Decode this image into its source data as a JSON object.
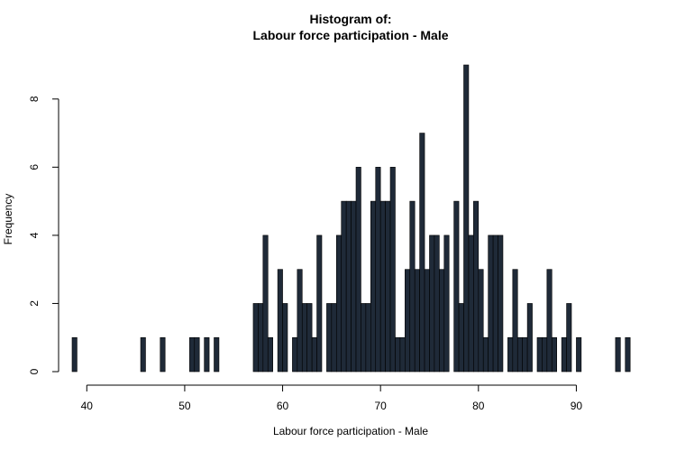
{
  "chart_data": {
    "type": "bar",
    "title": "Histogram of:",
    "subtitle": "Labour force participation - Male",
    "xlabel": "Labour force participation - Male",
    "ylabel": "Frequency",
    "xlim": [
      38.5,
      95.3
    ],
    "ylim": [
      0,
      9
    ],
    "x_ticks": [
      40,
      50,
      60,
      70,
      80,
      90
    ],
    "y_ticks": [
      0,
      2,
      4,
      6,
      8
    ],
    "bin_start": 38.5,
    "bin_width": 0.5,
    "bar_color": "#1f2a38",
    "grid": false,
    "values": [
      1,
      0,
      0,
      0,
      0,
      0,
      0,
      0,
      0,
      0,
      0,
      0,
      0,
      0,
      1,
      0,
      0,
      0,
      1,
      0,
      0,
      0,
      0,
      0,
      1,
      1,
      0,
      1,
      0,
      1,
      0,
      0,
      0,
      0,
      0,
      0,
      0,
      2,
      2,
      4,
      1,
      0,
      3,
      2,
      0,
      1,
      3,
      2,
      2,
      1,
      4,
      0,
      2,
      2,
      4,
      5,
      5,
      5,
      6,
      2,
      2,
      5,
      6,
      5,
      5,
      6,
      1,
      1,
      3,
      5,
      3,
      7,
      3,
      4,
      4,
      3,
      4,
      0,
      5,
      2,
      9,
      4,
      5,
      3,
      1,
      4,
      4,
      4,
      0,
      1,
      3,
      1,
      1,
      2,
      0,
      1,
      1,
      3,
      1,
      0,
      1,
      2,
      0,
      1,
      0,
      0,
      0,
      0,
      0,
      0,
      0,
      1,
      0,
      1
    ]
  }
}
